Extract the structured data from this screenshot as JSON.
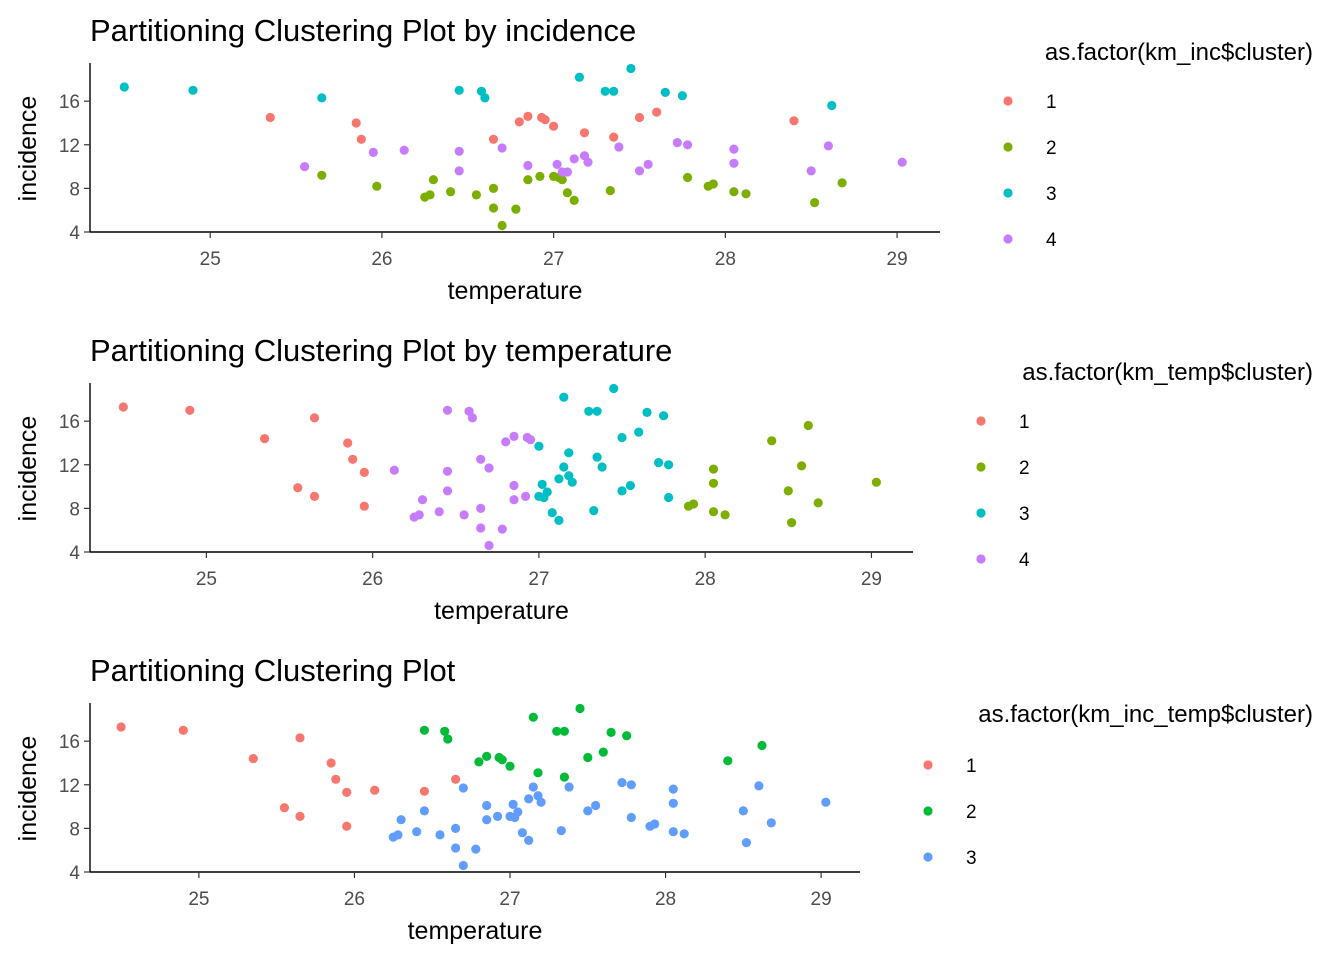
{
  "chart_data": [
    {
      "type": "scatter",
      "title": "Partitioning Clustering Plot by incidence",
      "xlabel": "temperature",
      "ylabel": "incidence",
      "xticks": [
        25,
        26,
        27,
        28,
        29
      ],
      "yticks": [
        4,
        8,
        12,
        16
      ],
      "xlim": [
        24.3,
        29.25
      ],
      "ylim": [
        4,
        19.5
      ],
      "grid": false,
      "legend": {
        "title": "as.factor(km_inc$cluster)",
        "position": "right"
      },
      "series": [
        {
          "name": "1",
          "color": "#F8766D",
          "points": [
            [
              25.35,
              14.5
            ],
            [
              25.85,
              14.0
            ],
            [
              25.88,
              12.5
            ],
            [
              26.65,
              12.5
            ],
            [
              26.8,
              14.1
            ],
            [
              26.85,
              14.6
            ],
            [
              26.93,
              14.5
            ],
            [
              26.95,
              14.3
            ],
            [
              27.0,
              13.7
            ],
            [
              27.18,
              13.1
            ],
            [
              27.35,
              12.7
            ],
            [
              27.5,
              14.5
            ],
            [
              27.6,
              15.0
            ],
            [
              28.4,
              14.2
            ]
          ]
        },
        {
          "name": "2",
          "color": "#7CAE00",
          "points": [
            [
              25.65,
              9.2
            ],
            [
              25.97,
              8.2
            ],
            [
              26.25,
              7.2
            ],
            [
              26.28,
              7.4
            ],
            [
              26.3,
              8.8
            ],
            [
              26.4,
              7.7
            ],
            [
              26.55,
              7.4
            ],
            [
              26.65,
              8.0
            ],
            [
              26.65,
              6.2
            ],
            [
              26.7,
              4.6
            ],
            [
              26.78,
              6.1
            ],
            [
              26.85,
              8.8
            ],
            [
              26.92,
              9.1
            ],
            [
              27.0,
              9.1
            ],
            [
              27.03,
              9.0
            ],
            [
              27.05,
              8.8
            ],
            [
              27.08,
              7.6
            ],
            [
              27.12,
              6.9
            ],
            [
              27.33,
              7.8
            ],
            [
              27.78,
              9.0
            ],
            [
              27.9,
              8.2
            ],
            [
              27.93,
              8.4
            ],
            [
              28.05,
              7.7
            ],
            [
              28.12,
              7.5
            ],
            [
              28.52,
              6.7
            ],
            [
              28.68,
              8.5
            ]
          ]
        },
        {
          "name": "3",
          "color": "#00BFC4",
          "points": [
            [
              24.5,
              17.3
            ],
            [
              24.9,
              17.0
            ],
            [
              25.65,
              16.3
            ],
            [
              26.45,
              17.0
            ],
            [
              26.58,
              16.9
            ],
            [
              26.6,
              16.3
            ],
            [
              27.15,
              18.2
            ],
            [
              27.3,
              16.9
            ],
            [
              27.35,
              16.9
            ],
            [
              27.45,
              19.0
            ],
            [
              27.65,
              16.8
            ],
            [
              27.75,
              16.5
            ],
            [
              28.62,
              15.6
            ]
          ]
        },
        {
          "name": "4",
          "color": "#C77CFF",
          "points": [
            [
              25.55,
              10.0
            ],
            [
              25.95,
              11.3
            ],
            [
              26.13,
              11.5
            ],
            [
              26.45,
              11.4
            ],
            [
              26.45,
              9.6
            ],
            [
              26.7,
              11.7
            ],
            [
              26.85,
              10.1
            ],
            [
              27.02,
              10.2
            ],
            [
              27.05,
              9.5
            ],
            [
              27.08,
              9.5
            ],
            [
              27.12,
              10.7
            ],
            [
              27.18,
              11.0
            ],
            [
              27.2,
              10.4
            ],
            [
              27.38,
              11.8
            ],
            [
              27.5,
              9.6
            ],
            [
              27.55,
              10.2
            ],
            [
              27.72,
              12.2
            ],
            [
              27.78,
              12.0
            ],
            [
              28.05,
              11.6
            ],
            [
              28.05,
              10.3
            ],
            [
              28.5,
              9.6
            ],
            [
              28.6,
              11.9
            ],
            [
              29.03,
              10.4
            ]
          ]
        }
      ]
    },
    {
      "type": "scatter",
      "title": "Partitioning Clustering Plot by temperature",
      "xlabel": "temperature",
      "ylabel": "incidence",
      "xticks": [
        25,
        26,
        27,
        28,
        29
      ],
      "yticks": [
        4,
        8,
        12,
        16
      ],
      "xlim": [
        24.3,
        29.25
      ],
      "ylim": [
        4,
        19.5
      ],
      "grid": false,
      "legend": {
        "title": "as.factor(km_temp$cluster)",
        "position": "right"
      },
      "series": [
        {
          "name": "1",
          "color": "#F8766D",
          "points": [
            [
              24.5,
              17.3
            ],
            [
              24.9,
              17.0
            ],
            [
              25.35,
              14.4
            ],
            [
              25.55,
              9.9
            ],
            [
              25.65,
              9.1
            ],
            [
              25.65,
              16.3
            ],
            [
              25.85,
              14.0
            ],
            [
              25.88,
              12.5
            ],
            [
              25.95,
              11.3
            ],
            [
              25.95,
              8.2
            ]
          ]
        },
        {
          "name": "2",
          "color": "#7CAE00",
          "points": [
            [
              27.9,
              8.2
            ],
            [
              27.93,
              8.4
            ],
            [
              28.05,
              11.6
            ],
            [
              28.05,
              10.3
            ],
            [
              28.05,
              7.7
            ],
            [
              28.12,
              7.4
            ],
            [
              28.4,
              14.2
            ],
            [
              28.5,
              9.6
            ],
            [
              28.52,
              6.7
            ],
            [
              28.58,
              11.9
            ],
            [
              28.62,
              15.6
            ],
            [
              28.68,
              8.5
            ],
            [
              29.03,
              10.4
            ]
          ]
        },
        {
          "name": "3",
          "color": "#00BFC4",
          "points": [
            [
              27.0,
              13.7
            ],
            [
              27.0,
              9.1
            ],
            [
              27.02,
              10.2
            ],
            [
              27.03,
              9.0
            ],
            [
              27.05,
              9.5
            ],
            [
              27.08,
              7.6
            ],
            [
              27.12,
              6.9
            ],
            [
              27.12,
              10.7
            ],
            [
              27.15,
              18.2
            ],
            [
              27.15,
              11.8
            ],
            [
              27.18,
              13.1
            ],
            [
              27.18,
              11.0
            ],
            [
              27.2,
              10.4
            ],
            [
              27.3,
              16.9
            ],
            [
              27.33,
              7.8
            ],
            [
              27.35,
              16.9
            ],
            [
              27.35,
              12.7
            ],
            [
              27.38,
              11.8
            ],
            [
              27.45,
              19.0
            ],
            [
              27.5,
              14.5
            ],
            [
              27.5,
              9.6
            ],
            [
              27.55,
              10.1
            ],
            [
              27.6,
              15.0
            ],
            [
              27.65,
              16.8
            ],
            [
              27.72,
              12.2
            ],
            [
              27.75,
              16.5
            ],
            [
              27.78,
              12.0
            ],
            [
              27.78,
              9.0
            ]
          ]
        },
        {
          "name": "4",
          "color": "#C77CFF",
          "points": [
            [
              26.13,
              11.5
            ],
            [
              26.25,
              7.2
            ],
            [
              26.28,
              7.4
            ],
            [
              26.3,
              8.8
            ],
            [
              26.4,
              7.7
            ],
            [
              26.45,
              17.0
            ],
            [
              26.45,
              11.4
            ],
            [
              26.45,
              9.6
            ],
            [
              26.55,
              7.4
            ],
            [
              26.58,
              16.9
            ],
            [
              26.6,
              16.3
            ],
            [
              26.65,
              12.5
            ],
            [
              26.65,
              8.0
            ],
            [
              26.65,
              6.2
            ],
            [
              26.7,
              4.6
            ],
            [
              26.7,
              11.7
            ],
            [
              26.78,
              6.1
            ],
            [
              26.8,
              14.1
            ],
            [
              26.85,
              14.6
            ],
            [
              26.85,
              8.8
            ],
            [
              26.85,
              10.1
            ],
            [
              26.92,
              9.1
            ],
            [
              26.93,
              14.5
            ],
            [
              26.95,
              14.3
            ]
          ]
        }
      ]
    },
    {
      "type": "scatter",
      "title": "Partitioning Clustering Plot",
      "xlabel": "temperature",
      "ylabel": "incidence",
      "xticks": [
        25,
        26,
        27,
        28,
        29
      ],
      "yticks": [
        4,
        8,
        12,
        16
      ],
      "xlim": [
        24.3,
        29.25
      ],
      "ylim": [
        4,
        19.5
      ],
      "grid": false,
      "legend": {
        "title": "as.factor(km_inc_temp$cluster)",
        "position": "right"
      },
      "series": [
        {
          "name": "1",
          "color": "#F8766D",
          "points": [
            [
              24.5,
              17.3
            ],
            [
              24.9,
              17.0
            ],
            [
              25.35,
              14.4
            ],
            [
              25.55,
              9.9
            ],
            [
              25.65,
              9.1
            ],
            [
              25.65,
              16.3
            ],
            [
              25.85,
              14.0
            ],
            [
              25.88,
              12.5
            ],
            [
              25.95,
              11.3
            ],
            [
              25.95,
              8.2
            ],
            [
              26.13,
              11.5
            ],
            [
              26.45,
              11.4
            ],
            [
              26.65,
              12.5
            ]
          ]
        },
        {
          "name": "2",
          "color": "#00BA38",
          "points": [
            [
              26.45,
              17.0
            ],
            [
              26.58,
              16.9
            ],
            [
              26.6,
              16.2
            ],
            [
              26.8,
              14.1
            ],
            [
              26.85,
              14.6
            ],
            [
              26.93,
              14.5
            ],
            [
              26.95,
              14.3
            ],
            [
              27.0,
              13.7
            ],
            [
              27.15,
              18.2
            ],
            [
              27.18,
              13.1
            ],
            [
              27.3,
              16.9
            ],
            [
              27.35,
              16.9
            ],
            [
              27.35,
              12.7
            ],
            [
              27.45,
              19.0
            ],
            [
              27.5,
              14.5
            ],
            [
              27.6,
              15.0
            ],
            [
              27.65,
              16.8
            ],
            [
              27.75,
              16.5
            ],
            [
              28.4,
              14.2
            ],
            [
              28.62,
              15.6
            ]
          ]
        },
        {
          "name": "3",
          "color": "#619CFF",
          "points": [
            [
              26.25,
              7.2
            ],
            [
              26.28,
              7.4
            ],
            [
              26.3,
              8.8
            ],
            [
              26.4,
              7.7
            ],
            [
              26.45,
              9.6
            ],
            [
              26.55,
              7.4
            ],
            [
              26.65,
              8.0
            ],
            [
              26.65,
              6.2
            ],
            [
              26.7,
              4.6
            ],
            [
              26.7,
              11.7
            ],
            [
              26.78,
              6.1
            ],
            [
              26.85,
              8.8
            ],
            [
              26.85,
              10.1
            ],
            [
              26.92,
              9.1
            ],
            [
              27.0,
              9.1
            ],
            [
              27.02,
              10.2
            ],
            [
              27.03,
              9.0
            ],
            [
              27.05,
              9.5
            ],
            [
              27.08,
              7.6
            ],
            [
              27.12,
              6.9
            ],
            [
              27.12,
              10.7
            ],
            [
              27.15,
              11.8
            ],
            [
              27.18,
              11.0
            ],
            [
              27.2,
              10.4
            ],
            [
              27.33,
              7.8
            ],
            [
              27.38,
              11.8
            ],
            [
              27.5,
              9.6
            ],
            [
              27.55,
              10.1
            ],
            [
              27.72,
              12.2
            ],
            [
              27.78,
              12.0
            ],
            [
              27.78,
              9.0
            ],
            [
              27.9,
              8.2
            ],
            [
              27.93,
              8.4
            ],
            [
              28.05,
              11.6
            ],
            [
              28.05,
              10.3
            ],
            [
              28.05,
              7.7
            ],
            [
              28.12,
              7.5
            ],
            [
              28.5,
              9.6
            ],
            [
              28.52,
              6.7
            ],
            [
              28.6,
              11.9
            ],
            [
              28.68,
              8.5
            ],
            [
              29.03,
              10.4
            ]
          ]
        }
      ]
    }
  ]
}
